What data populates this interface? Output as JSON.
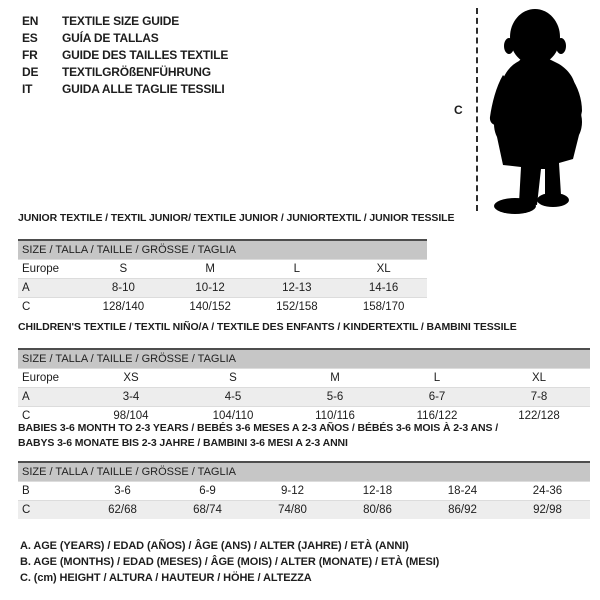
{
  "colors": {
    "text": "#1d1d1d",
    "size_bar_bg": "#c6c6c6",
    "alt_row_bg": "#ededed",
    "table_top_border": "#4d4d4d",
    "silhouette": "#000000"
  },
  "language_header": {
    "items": [
      {
        "code": "EN",
        "label": "TEXTILE SIZE GUIDE"
      },
      {
        "code": "ES",
        "label": "GUÍA DE TALLAS"
      },
      {
        "code": "FR",
        "label": "GUIDE DES TAILLES TEXTILE"
      },
      {
        "code": "DE",
        "label": "TEXTILGRÖßENFÜHRUNG"
      },
      {
        "code": "IT",
        "label": "GUIDA ALLE TAGLIE TESSILI"
      }
    ]
  },
  "figure": {
    "measure_label": "C",
    "description": "toddler silhouette with dashed height line"
  },
  "sections": [
    {
      "title_lines": [
        "JUNIOR TEXTILE / TEXTIL JUNIOR/ TEXTILE JUNIOR / JUNIORTEXTIL / JUNIOR TESSILE"
      ],
      "table": {
        "size_header": "SIZE / TALLA / TAILLE / GRÖSSE / TAGLIA",
        "rows": [
          {
            "label": "Europe",
            "cells": [
              "S",
              "M",
              "L",
              "XL"
            ],
            "shaded": false
          },
          {
            "label": "A",
            "cells": [
              "8-10",
              "10-12",
              "12-13",
              "14-16"
            ],
            "shaded": true
          },
          {
            "label": "C",
            "cells": [
              "128/140",
              "140/152",
              "152/158",
              "158/170"
            ],
            "shaded": false
          }
        ]
      }
    },
    {
      "title_lines": [
        "CHILDREN'S TEXTILE / TEXTIL NIÑO/A / TEXTILE DES ENFANTS / KINDERTEXTIL / BAMBINI TESSILE"
      ],
      "table": {
        "size_header": "SIZE / TALLA / TAILLE / GRÖSSE / TAGLIA",
        "rows": [
          {
            "label": "Europe",
            "cells": [
              "XS",
              "S",
              "M",
              "L",
              "XL"
            ],
            "shaded": false
          },
          {
            "label": "A",
            "cells": [
              "3-4",
              "4-5",
              "5-6",
              "6-7",
              "7-8"
            ],
            "shaded": true
          },
          {
            "label": "C",
            "cells": [
              "98/104",
              "104/110",
              "110/116",
              "116/122",
              "122/128"
            ],
            "shaded": false
          }
        ]
      }
    },
    {
      "title_lines": [
        "BABIES 3-6 MONTH TO 2-3 YEARS / BEBÉS 3-6 MESES A 2-3 AÑOS / BÉBÉS 3-6 MOIS À 2-3 ANS /",
        "BABYS 3-6 MONATE BIS 2-3 JAHRE / BAMBINI 3-6 MESI A 2-3 ANNI"
      ],
      "table": {
        "size_header": "SIZE / TALLA / TAILLE / GRÖSSE / TAGLIA",
        "rows": [
          {
            "label": "B",
            "cells": [
              "3-6",
              "6-9",
              "9-12",
              "12-18",
              "18-24",
              "24-36"
            ],
            "shaded": false
          },
          {
            "label": "C",
            "cells": [
              "62/68",
              "68/74",
              "74/80",
              "80/86",
              "86/92",
              "92/98"
            ],
            "shaded": true
          }
        ]
      }
    }
  ],
  "legend": {
    "lines": [
      "A. AGE (YEARS) / EDAD (AÑOS) / ÂGE (ANS) / ALTER (JAHRE) / ETÀ (ANNI)",
      "B. AGE (MONTHS) / EDAD (MESES) / ÂGE (MOIS) / ALTER (MONATE) / ETÀ (MESI)",
      "C. (cm) HEIGHT / ALTURA / HAUTEUR / HÖHE / ALTEZZA"
    ]
  }
}
